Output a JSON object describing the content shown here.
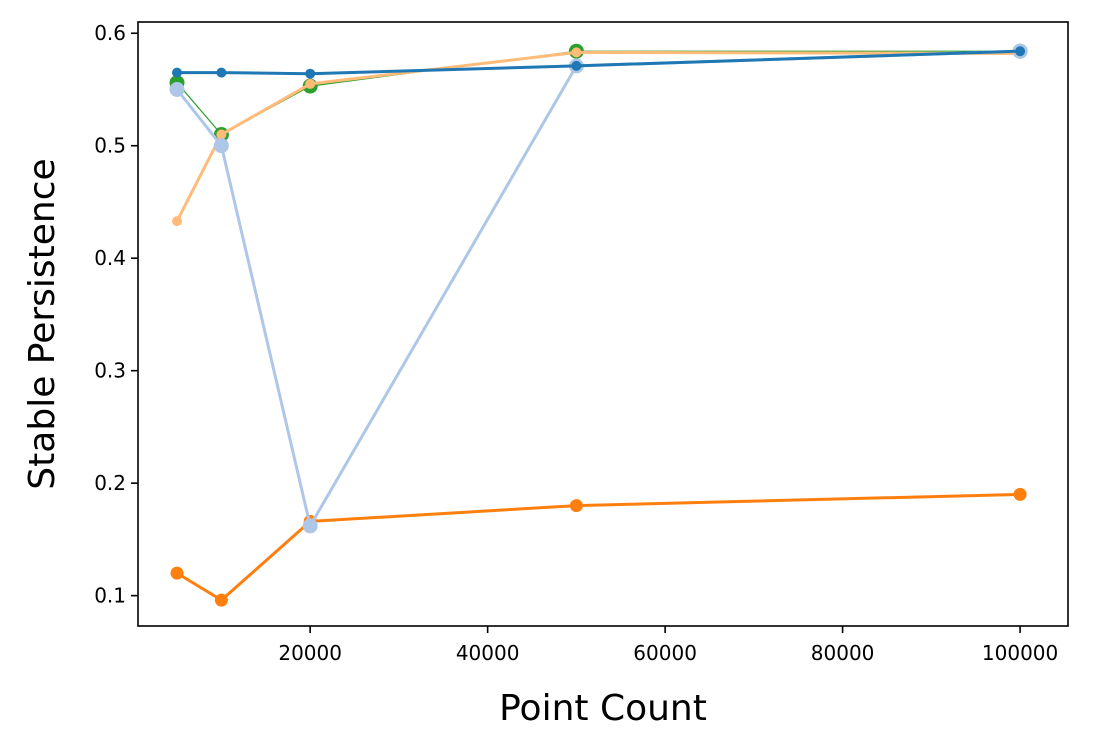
{
  "chart_data": {
    "type": "line",
    "title": "",
    "xlabel": "Point Count",
    "ylabel": "Stable Persistence",
    "xlim": [
      600,
      105400
    ],
    "ylim": [
      0.073,
      0.61
    ],
    "x_ticks": [
      20000,
      40000,
      60000,
      80000,
      100000
    ],
    "x_tick_labels": [
      "20000",
      "40000",
      "60000",
      "80000",
      "100000"
    ],
    "y_ticks": [
      0.1,
      0.2,
      0.3,
      0.4,
      0.5,
      0.6
    ],
    "y_tick_labels": [
      "0.1",
      "0.2",
      "0.3",
      "0.4",
      "0.5",
      "0.6"
    ],
    "grid": false,
    "legend": "none",
    "x": [
      5000,
      10000,
      20000,
      50000,
      100000
    ],
    "series": [
      {
        "color": "#2ca02c",
        "line_width": 1.2,
        "marker_radius": 7.5,
        "values": [
          0.556,
          0.51,
          0.553,
          0.584,
          0.584
        ]
      },
      {
        "color": "#ffbb78",
        "line_width": 3,
        "marker_radius": 5,
        "values": [
          0.433,
          0.51,
          0.555,
          0.583,
          0.582
        ]
      },
      {
        "color": "#ff7f0e",
        "line_width": 3,
        "marker_radius": 6.5,
        "values": [
          0.12,
          0.096,
          0.166,
          0.18,
          0.19
        ]
      },
      {
        "color": "#aec7e8",
        "line_width": 3,
        "marker_radius": 7.5,
        "values": [
          0.55,
          0.5,
          0.162,
          0.571,
          0.584
        ]
      },
      {
        "color": "#1f77b4",
        "line_width": 3,
        "marker_radius": 5,
        "values": [
          0.565,
          0.565,
          0.564,
          0.571,
          0.584
        ]
      }
    ]
  }
}
